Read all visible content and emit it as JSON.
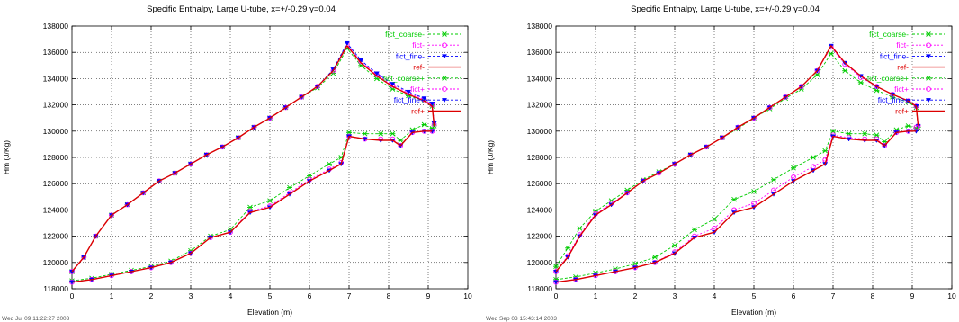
{
  "chart_data": [
    {
      "type": "line",
      "title": "Specific Enthalpy, Large U-tube, x=+/-0.29 y=0.04",
      "xlabel": "Elevation (m)",
      "ylabel": "Hm (J/Kg)",
      "xlim": [
        0,
        10
      ],
      "ylim": [
        118000,
        138000
      ],
      "xticks": [
        0,
        1,
        2,
        3,
        4,
        5,
        6,
        7,
        8,
        9,
        10
      ],
      "yticks": [
        118000,
        120000,
        122000,
        124000,
        126000,
        128000,
        130000,
        132000,
        134000,
        136000,
        138000
      ],
      "grid": true,
      "legend_position": "top-right",
      "timestamp": "Wed Jul 09 11:22:27 2003",
      "series": [
        {
          "name": "fict_coarse-",
          "color": "#00cc00",
          "marker": "x",
          "dash": "3,2",
          "x": [
            0,
            0.3,
            0.6,
            1.0,
            1.4,
            1.8,
            2.2,
            2.6,
            3.0,
            3.4,
            3.8,
            4.2,
            4.6,
            5.0,
            5.4,
            5.8,
            6.2,
            6.6,
            6.95,
            7.3,
            7.7,
            8.1,
            8.5,
            8.9,
            9.1,
            9.15
          ],
          "y": [
            119300,
            120400,
            122000,
            123600,
            124400,
            125300,
            126200,
            126800,
            127500,
            128200,
            128800,
            129500,
            130300,
            131000,
            131800,
            132600,
            133300,
            134400,
            136300,
            135000,
            134000,
            133200,
            132700,
            132300,
            131900,
            130400
          ]
        },
        {
          "name": "fict-",
          "color": "#ff00ff",
          "marker": "o",
          "dash": "2,2",
          "x": [
            0,
            0.3,
            0.6,
            1.0,
            1.4,
            1.8,
            2.2,
            2.6,
            3.0,
            3.4,
            3.8,
            4.2,
            4.6,
            5.0,
            5.4,
            5.8,
            6.2,
            6.6,
            6.95,
            7.3,
            7.7,
            8.1,
            8.5,
            8.9,
            9.1,
            9.15
          ],
          "y": [
            119300,
            120400,
            122000,
            123600,
            124400,
            125300,
            126200,
            126800,
            127500,
            128200,
            128800,
            129500,
            130300,
            131000,
            131800,
            132600,
            133400,
            134600,
            136600,
            135300,
            134300,
            133500,
            132900,
            132400,
            132000,
            130500
          ]
        },
        {
          "name": "fict_fine-",
          "color": "#0000ff",
          "marker": "triangle",
          "dash": "3,2",
          "x": [
            0,
            0.3,
            0.6,
            1.0,
            1.4,
            1.8,
            2.2,
            2.6,
            3.0,
            3.4,
            3.8,
            4.2,
            4.6,
            5.0,
            5.4,
            5.8,
            6.2,
            6.6,
            6.95,
            7.3,
            7.7,
            8.1,
            8.5,
            8.9,
            9.1,
            9.15
          ],
          "y": [
            119300,
            120400,
            122000,
            123600,
            124400,
            125300,
            126200,
            126800,
            127500,
            128200,
            128800,
            129500,
            130300,
            131000,
            131800,
            132600,
            133400,
            134700,
            136700,
            135400,
            134400,
            133600,
            133000,
            132500,
            132100,
            130600
          ]
        },
        {
          "name": "ref-",
          "color": "#dd0000",
          "marker": "none",
          "dash": "",
          "x": [
            0,
            0.3,
            0.6,
            1.0,
            1.4,
            1.8,
            2.2,
            2.6,
            3.0,
            3.4,
            3.8,
            4.2,
            4.6,
            5.0,
            5.4,
            5.8,
            6.2,
            6.6,
            6.95,
            7.3,
            7.7,
            8.1,
            8.5,
            8.9,
            9.1,
            9.15
          ],
          "y": [
            119300,
            120400,
            122000,
            123600,
            124400,
            125300,
            126200,
            126800,
            127500,
            128200,
            128800,
            129500,
            130300,
            131000,
            131800,
            132600,
            133400,
            134600,
            136500,
            135200,
            134200,
            133400,
            132800,
            132300,
            131900,
            130400
          ]
        },
        {
          "name": "fict_coarse+",
          "color": "#00cc00",
          "marker": "x",
          "dash": "3,2",
          "x": [
            0,
            0.5,
            1.0,
            1.5,
            2.0,
            2.5,
            3.0,
            3.5,
            4.0,
            4.5,
            5.0,
            5.5,
            6.0,
            6.5,
            6.8,
            7.0,
            7.4,
            7.8,
            8.1,
            8.3,
            8.6,
            8.9,
            9.1
          ],
          "y": [
            118600,
            118800,
            119100,
            119400,
            119700,
            120100,
            120900,
            122000,
            122500,
            124200,
            124700,
            125700,
            126600,
            127500,
            128000,
            129900,
            129800,
            129800,
            129800,
            129300,
            130100,
            130500,
            130200
          ]
        },
        {
          "name": "fict+",
          "color": "#ff00ff",
          "marker": "o",
          "dash": "2,2",
          "x": [
            0,
            0.5,
            1.0,
            1.5,
            2.0,
            2.5,
            3.0,
            3.5,
            4.0,
            4.5,
            5.0,
            5.5,
            6.0,
            6.5,
            6.8,
            7.0,
            7.4,
            7.8,
            8.1,
            8.3,
            8.6,
            8.9,
            9.1
          ],
          "y": [
            118500,
            118700,
            119000,
            119300,
            119600,
            120000,
            120700,
            121900,
            122300,
            123900,
            124300,
            125300,
            126300,
            127100,
            127600,
            129600,
            129400,
            129400,
            129400,
            128900,
            129900,
            130000,
            130000
          ]
        },
        {
          "name": "fict_fine+",
          "color": "#0000ff",
          "marker": "triangle",
          "dash": "3,2",
          "x": [
            0,
            0.5,
            1.0,
            1.5,
            2.0,
            2.5,
            3.0,
            3.5,
            4.0,
            4.5,
            5.0,
            5.5,
            6.0,
            6.5,
            6.8,
            7.0,
            7.4,
            7.8,
            8.1,
            8.3,
            8.6,
            8.9,
            9.1
          ],
          "y": [
            118500,
            118700,
            119000,
            119300,
            119600,
            120000,
            120700,
            121900,
            122300,
            123800,
            124200,
            125200,
            126200,
            127000,
            127500,
            129600,
            129400,
            129300,
            129300,
            128900,
            129900,
            130000,
            130000
          ]
        },
        {
          "name": "ref+",
          "color": "#dd0000",
          "marker": "none",
          "dash": "",
          "x": [
            0,
            0.5,
            1.0,
            1.5,
            2.0,
            2.5,
            3.0,
            3.5,
            4.0,
            4.5,
            5.0,
            5.5,
            6.0,
            6.5,
            6.8,
            7.0,
            7.4,
            7.8,
            8.1,
            8.3,
            8.6,
            8.9,
            9.1
          ],
          "y": [
            118500,
            118700,
            119000,
            119300,
            119600,
            120000,
            120700,
            121900,
            122300,
            123800,
            124200,
            125200,
            126200,
            127000,
            127500,
            129600,
            129400,
            129300,
            129300,
            128900,
            129900,
            130000,
            130000
          ]
        }
      ]
    },
    {
      "type": "line",
      "title": "Specific Enthalpy, Large U-tube, x=+/-0.29 y=0.04",
      "xlabel": "Elevation (m)",
      "ylabel": "Hm (J/Kg)",
      "xlim": [
        0,
        10
      ],
      "ylim": [
        118000,
        138000
      ],
      "xticks": [
        0,
        1,
        2,
        3,
        4,
        5,
        6,
        7,
        8,
        9,
        10
      ],
      "yticks": [
        118000,
        120000,
        122000,
        124000,
        126000,
        128000,
        130000,
        132000,
        134000,
        136000,
        138000
      ],
      "grid": true,
      "legend_position": "top-right",
      "timestamp": "Wed Sep 03 15:43:14 2003",
      "series": [
        {
          "name": "fict_coarse-",
          "color": "#00cc00",
          "marker": "x",
          "dash": "3,2",
          "x": [
            0,
            0.3,
            0.6,
            1.0,
            1.4,
            1.8,
            2.2,
            2.6,
            3.0,
            3.4,
            3.8,
            4.2,
            4.6,
            5.0,
            5.4,
            5.8,
            6.2,
            6.6,
            6.95,
            7.3,
            7.7,
            8.1,
            8.5,
            8.9,
            9.1,
            9.15
          ],
          "y": [
            119700,
            121100,
            122600,
            123900,
            124700,
            125500,
            126300,
            126900,
            127500,
            128200,
            128800,
            129500,
            130200,
            131000,
            131700,
            132500,
            133200,
            134300,
            135900,
            134600,
            133700,
            133100,
            132600,
            132200,
            131800,
            130300
          ]
        },
        {
          "name": "fict-",
          "color": "#ff00ff",
          "marker": "o",
          "dash": "2,2",
          "x": [
            0,
            0.3,
            0.6,
            1.0,
            1.4,
            1.8,
            2.2,
            2.6,
            3.0,
            3.4,
            3.8,
            4.2,
            4.6,
            5.0,
            5.4,
            5.8,
            6.2,
            6.6,
            6.95,
            7.3,
            7.7,
            8.1,
            8.5,
            8.9,
            9.1,
            9.15
          ],
          "y": [
            119300,
            120500,
            122100,
            123700,
            124500,
            125300,
            126200,
            126800,
            127500,
            128200,
            128800,
            129500,
            130300,
            131000,
            131800,
            132600,
            133400,
            134600,
            136400,
            135100,
            134100,
            133400,
            132800,
            132300,
            131900,
            130400
          ]
        },
        {
          "name": "fict_fine-",
          "color": "#0000ff",
          "marker": "triangle",
          "dash": "3,2",
          "x": [
            0,
            0.3,
            0.6,
            1.0,
            1.4,
            1.8,
            2.2,
            2.6,
            3.0,
            3.4,
            3.8,
            4.2,
            4.6,
            5.0,
            5.4,
            5.8,
            6.2,
            6.6,
            6.95,
            7.3,
            7.7,
            8.1,
            8.5,
            8.9,
            9.1,
            9.15
          ],
          "y": [
            119300,
            120400,
            122000,
            123600,
            124400,
            125300,
            126200,
            126800,
            127500,
            128200,
            128800,
            129500,
            130300,
            131000,
            131800,
            132600,
            133400,
            134600,
            136500,
            135200,
            134200,
            133400,
            132800,
            132300,
            131900,
            130400
          ]
        },
        {
          "name": "ref-",
          "color": "#dd0000",
          "marker": "none",
          "dash": "",
          "x": [
            0,
            0.3,
            0.6,
            1.0,
            1.4,
            1.8,
            2.2,
            2.6,
            3.0,
            3.4,
            3.8,
            4.2,
            4.6,
            5.0,
            5.4,
            5.8,
            6.2,
            6.6,
            6.95,
            7.3,
            7.7,
            8.1,
            8.5,
            8.9,
            9.1,
            9.15
          ],
          "y": [
            119300,
            120400,
            122000,
            123600,
            124400,
            125300,
            126200,
            126800,
            127500,
            128200,
            128800,
            129500,
            130300,
            131000,
            131800,
            132600,
            133400,
            134600,
            136500,
            135200,
            134200,
            133400,
            132800,
            132300,
            131900,
            130400
          ]
        },
        {
          "name": "fict_coarse+",
          "color": "#00cc00",
          "marker": "x",
          "dash": "3,2",
          "x": [
            0,
            0.5,
            1.0,
            1.5,
            2.0,
            2.5,
            3.0,
            3.5,
            4.0,
            4.5,
            5.0,
            5.5,
            6.0,
            6.5,
            6.8,
            7.0,
            7.4,
            7.8,
            8.1,
            8.3,
            8.6,
            8.9,
            9.1
          ],
          "y": [
            118700,
            118900,
            119200,
            119500,
            119900,
            120400,
            121300,
            122500,
            123300,
            124800,
            125400,
            126300,
            127200,
            128000,
            128500,
            130000,
            129800,
            129800,
            129700,
            129200,
            130100,
            130400,
            130200
          ]
        },
        {
          "name": "fict+",
          "color": "#ff00ff",
          "marker": "o",
          "dash": "2,2",
          "x": [
            0,
            0.5,
            1.0,
            1.5,
            2.0,
            2.5,
            3.0,
            3.5,
            4.0,
            4.5,
            5.0,
            5.5,
            6.0,
            6.5,
            6.8,
            7.0,
            7.4,
            7.8,
            8.1,
            8.3,
            8.6,
            8.9,
            9.1
          ],
          "y": [
            118500,
            118700,
            119000,
            119300,
            119600,
            120000,
            120800,
            122000,
            122600,
            124000,
            124500,
            125500,
            126500,
            127300,
            127800,
            129700,
            129500,
            129400,
            129400,
            128900,
            129900,
            130000,
            130300
          ]
        },
        {
          "name": "fict_fine+",
          "color": "#0000ff",
          "marker": "triangle",
          "dash": "3,2",
          "x": [
            0,
            0.5,
            1.0,
            1.5,
            2.0,
            2.5,
            3.0,
            3.5,
            4.0,
            4.5,
            5.0,
            5.5,
            6.0,
            6.5,
            6.8,
            7.0,
            7.4,
            7.8,
            8.1,
            8.3,
            8.6,
            8.9,
            9.1
          ],
          "y": [
            118500,
            118700,
            119000,
            119300,
            119600,
            120000,
            120700,
            121900,
            122300,
            123800,
            124200,
            125200,
            126200,
            127000,
            127500,
            129600,
            129400,
            129300,
            129300,
            128900,
            129900,
            130000,
            130000
          ]
        },
        {
          "name": "ref+",
          "color": "#dd0000",
          "marker": "none",
          "dash": "",
          "x": [
            0,
            0.5,
            1.0,
            1.5,
            2.0,
            2.5,
            3.0,
            3.5,
            4.0,
            4.5,
            5.0,
            5.5,
            6.0,
            6.5,
            6.8,
            7.0,
            7.4,
            7.8,
            8.1,
            8.3,
            8.6,
            8.9,
            9.1
          ],
          "y": [
            118500,
            118700,
            119000,
            119300,
            119600,
            120000,
            120700,
            121900,
            122300,
            123800,
            124200,
            125200,
            126200,
            127000,
            127500,
            129600,
            129400,
            129300,
            129300,
            128900,
            129900,
            130000,
            130000
          ]
        }
      ]
    }
  ]
}
